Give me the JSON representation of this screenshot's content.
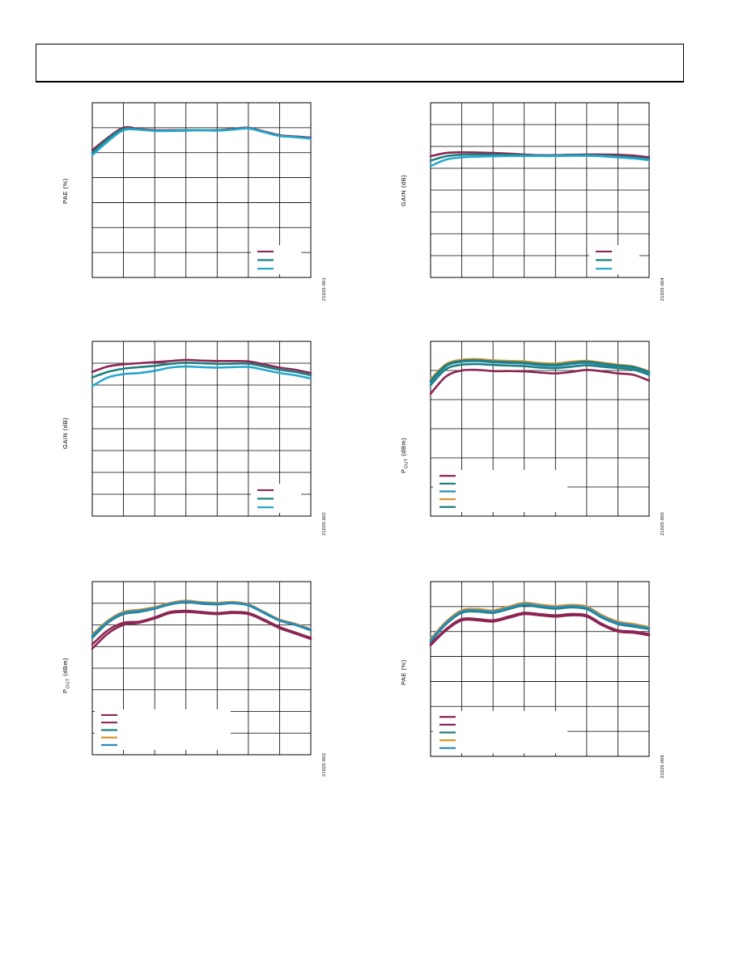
{
  "header": {
    "title": ""
  },
  "colors": {
    "maroon": "#8c2553",
    "teal": "#1f7f7f",
    "cyan": "#27a6cc",
    "orange": "#d9952b",
    "blue": "#2a8bbf"
  },
  "chart_data": [
    {
      "id": "fig1",
      "type": "line",
      "title": "",
      "ylabel": "PAE (%)",
      "figure_id": "21025-001",
      "xlim": [
        0,
        7
      ],
      "ylim": [
        0,
        7
      ],
      "grid": true,
      "legend_position": "bottom-right",
      "legend": [
        "",
        "",
        ""
      ],
      "series": [
        {
          "name": "",
          "color": "maroon",
          "x": [
            0,
            0.5,
            1,
            1.5,
            2,
            2.5,
            3,
            3.5,
            4,
            4.5,
            5,
            5.5,
            6,
            6.5,
            7
          ],
          "y": [
            5.1,
            5.6,
            6.0,
            5.95,
            5.9,
            5.9,
            5.9,
            5.9,
            5.9,
            5.95,
            6.0,
            5.85,
            5.7,
            5.65,
            5.6
          ]
        },
        {
          "name": "",
          "color": "teal",
          "x": [
            0,
            0.5,
            1,
            1.5,
            2,
            2.5,
            3,
            3.5,
            4,
            4.5,
            5,
            5.5,
            6,
            6.5,
            7
          ],
          "y": [
            5.0,
            5.55,
            5.95,
            5.93,
            5.88,
            5.88,
            5.9,
            5.9,
            5.9,
            5.93,
            5.98,
            5.83,
            5.68,
            5.63,
            5.58
          ]
        },
        {
          "name": "",
          "color": "cyan",
          "x": [
            0,
            0.5,
            1,
            1.5,
            2,
            2.5,
            3,
            3.5,
            4,
            4.5,
            5,
            5.5,
            6,
            6.5,
            7
          ],
          "y": [
            4.9,
            5.45,
            5.9,
            5.92,
            5.87,
            5.87,
            5.88,
            5.9,
            5.88,
            5.92,
            5.97,
            5.82,
            5.67,
            5.62,
            5.56
          ]
        }
      ]
    },
    {
      "id": "fig2",
      "type": "line",
      "title": "",
      "ylabel": "GAIN (dB)",
      "figure_id": "21025-002",
      "xlim": [
        0,
        7
      ],
      "ylim": [
        0,
        8
      ],
      "grid": true,
      "legend_position": "bottom-right",
      "legend": [
        "",
        "",
        ""
      ],
      "series": [
        {
          "name": "",
          "color": "maroon",
          "x": [
            0,
            0.5,
            1,
            1.5,
            2,
            2.5,
            3,
            3.5,
            4,
            4.5,
            5,
            5.5,
            6,
            6.5,
            7
          ],
          "y": [
            6.6,
            6.85,
            6.95,
            7.0,
            7.05,
            7.1,
            7.15,
            7.12,
            7.1,
            7.1,
            7.08,
            6.95,
            6.8,
            6.7,
            6.55
          ]
        },
        {
          "name": "",
          "color": "teal",
          "x": [
            0,
            0.5,
            1,
            1.5,
            2,
            2.5,
            3,
            3.5,
            4,
            4.5,
            5,
            5.5,
            6,
            6.5,
            7
          ],
          "y": [
            6.35,
            6.6,
            6.75,
            6.82,
            6.88,
            6.97,
            7.02,
            7.0,
            6.97,
            6.98,
            6.98,
            6.85,
            6.7,
            6.6,
            6.45
          ]
        },
        {
          "name": "",
          "color": "cyan",
          "x": [
            0,
            0.5,
            1,
            1.5,
            2,
            2.5,
            3,
            3.5,
            4,
            4.5,
            5,
            5.5,
            6,
            6.5,
            7
          ],
          "y": [
            5.95,
            6.35,
            6.5,
            6.55,
            6.65,
            6.8,
            6.85,
            6.82,
            6.8,
            6.82,
            6.83,
            6.7,
            6.55,
            6.45,
            6.3
          ]
        }
      ]
    },
    {
      "id": "fig3",
      "type": "line",
      "title": "",
      "ylabel": "POUT (dBm)",
      "figure_id": "21025-003",
      "xlim": [
        0,
        7
      ],
      "ylim": [
        0,
        8
      ],
      "grid": true,
      "legend_position": "bottom-left",
      "legend": [
        "",
        "",
        "",
        "",
        ""
      ],
      "series": [
        {
          "name": "",
          "color": "maroon",
          "x": [
            0,
            0.5,
            1,
            1.5,
            2,
            2.5,
            3,
            3.5,
            4,
            4.5,
            5,
            5.5,
            6,
            6.5,
            7
          ],
          "y": [
            4.9,
            5.6,
            6.0,
            6.1,
            6.3,
            6.55,
            6.6,
            6.55,
            6.5,
            6.55,
            6.5,
            6.2,
            5.85,
            5.6,
            5.35
          ]
        },
        {
          "name": "",
          "color": "maroon",
          "x": [
            0,
            0.5,
            1,
            1.5,
            2,
            2.5,
            3,
            3.5,
            4,
            4.5,
            5,
            5.5,
            6,
            6.5,
            7
          ],
          "y": [
            5.1,
            5.75,
            6.1,
            6.15,
            6.35,
            6.6,
            6.65,
            6.6,
            6.55,
            6.6,
            6.55,
            6.25,
            5.9,
            5.65,
            5.4
          ]
        },
        {
          "name": "",
          "color": "teal",
          "x": [
            0,
            0.5,
            1,
            1.5,
            2,
            2.5,
            3,
            3.5,
            4,
            4.5,
            5,
            5.5,
            6,
            6.5,
            7
          ],
          "y": [
            5.4,
            6.1,
            6.5,
            6.6,
            6.75,
            6.95,
            7.05,
            6.98,
            6.95,
            7.0,
            6.9,
            6.55,
            6.2,
            6.0,
            5.75
          ]
        },
        {
          "name": "",
          "color": "orange",
          "x": [
            0,
            0.5,
            1,
            1.5,
            2,
            2.5,
            3,
            3.5,
            4,
            4.5,
            5,
            5.5,
            6,
            6.5,
            7
          ],
          "y": [
            5.55,
            6.2,
            6.6,
            6.7,
            6.82,
            7.02,
            7.12,
            7.05,
            7.02,
            7.06,
            6.95,
            6.6,
            6.25,
            6.05,
            5.8
          ]
        },
        {
          "name": "",
          "color": "blue",
          "x": [
            0,
            0.5,
            1,
            1.5,
            2,
            2.5,
            3,
            3.5,
            4,
            4.5,
            5,
            5.5,
            6,
            6.5,
            7
          ],
          "y": [
            5.5,
            6.15,
            6.55,
            6.65,
            6.78,
            6.98,
            7.08,
            7.02,
            6.98,
            7.02,
            6.92,
            6.58,
            6.22,
            6.02,
            5.78
          ]
        }
      ]
    },
    {
      "id": "fig4",
      "type": "line",
      "title": "",
      "ylabel": "GAIN (dB)",
      "figure_id": "21025-004",
      "xlim": [
        0,
        7
      ],
      "ylim": [
        0,
        8
      ],
      "grid": true,
      "legend_position": "bottom-right",
      "legend": [
        "",
        "",
        ""
      ],
      "series": [
        {
          "name": "",
          "color": "maroon",
          "x": [
            0,
            0.5,
            1,
            1.5,
            2,
            2.5,
            3,
            3.5,
            4,
            4.5,
            5,
            5.5,
            6,
            6.5,
            7
          ],
          "y": [
            5.55,
            5.7,
            5.73,
            5.72,
            5.7,
            5.67,
            5.63,
            5.6,
            5.6,
            5.62,
            5.63,
            5.63,
            5.62,
            5.58,
            5.5
          ]
        },
        {
          "name": "",
          "color": "teal",
          "x": [
            0,
            0.5,
            1,
            1.5,
            2,
            2.5,
            3,
            3.5,
            4,
            4.5,
            5,
            5.5,
            6,
            6.5,
            7
          ],
          "y": [
            5.35,
            5.55,
            5.62,
            5.63,
            5.63,
            5.62,
            5.6,
            5.58,
            5.58,
            5.6,
            5.6,
            5.58,
            5.55,
            5.5,
            5.42
          ]
        },
        {
          "name": "",
          "color": "cyan",
          "x": [
            0,
            0.5,
            1,
            1.5,
            2,
            2.5,
            3,
            3.5,
            4,
            4.5,
            5,
            5.5,
            6,
            6.5,
            7
          ],
          "y": [
            5.1,
            5.4,
            5.5,
            5.53,
            5.55,
            5.56,
            5.56,
            5.56,
            5.56,
            5.57,
            5.57,
            5.55,
            5.5,
            5.45,
            5.37
          ]
        }
      ]
    },
    {
      "id": "fig5",
      "type": "line",
      "title": "",
      "ylabel": "POUT (dBm)",
      "figure_id": "21025-005",
      "xlim": [
        0,
        7
      ],
      "ylim": [
        0,
        6
      ],
      "grid": true,
      "legend_position": "bottom-left",
      "legend": [
        "",
        "",
        "",
        "",
        ""
      ],
      "series": [
        {
          "name": "",
          "color": "maroon",
          "x": [
            0,
            0.5,
            1,
            1.5,
            2,
            2.5,
            3,
            3.5,
            4,
            4.5,
            5,
            5.5,
            6,
            6.5,
            7
          ],
          "y": [
            4.2,
            4.8,
            5.0,
            5.02,
            4.98,
            4.98,
            4.97,
            4.93,
            4.9,
            4.95,
            5.02,
            4.97,
            4.9,
            4.85,
            4.65
          ]
        },
        {
          "name": "",
          "color": "teal",
          "x": [
            0,
            0.5,
            1,
            1.5,
            2,
            2.5,
            3,
            3.5,
            4,
            4.5,
            5,
            5.5,
            6,
            6.5,
            7
          ],
          "y": [
            4.5,
            5.05,
            5.2,
            5.22,
            5.19,
            5.17,
            5.15,
            5.1,
            5.08,
            5.13,
            5.18,
            5.13,
            5.08,
            5.03,
            4.85
          ]
        },
        {
          "name": "",
          "color": "blue",
          "x": [
            0,
            0.5,
            1,
            1.5,
            2,
            2.5,
            3,
            3.5,
            4,
            4.5,
            5,
            5.5,
            6,
            6.5,
            7
          ],
          "y": [
            4.6,
            5.15,
            5.3,
            5.32,
            5.28,
            5.26,
            5.24,
            5.18,
            5.16,
            5.22,
            5.26,
            5.2,
            5.14,
            5.09,
            4.92
          ]
        },
        {
          "name": "",
          "color": "orange",
          "x": [
            0,
            0.5,
            1,
            1.5,
            2,
            2.5,
            3,
            3.5,
            4,
            4.5,
            5,
            5.5,
            6,
            6.5,
            7
          ],
          "y": [
            4.7,
            5.22,
            5.37,
            5.39,
            5.35,
            5.33,
            5.31,
            5.26,
            5.24,
            5.3,
            5.33,
            5.27,
            5.2,
            5.14,
            4.97
          ]
        },
        {
          "name": "",
          "color": "teal",
          "x": [
            0,
            0.5,
            1,
            1.5,
            2,
            2.5,
            3,
            3.5,
            4,
            4.5,
            5,
            5.5,
            6,
            6.5,
            7
          ],
          "y": [
            4.65,
            5.18,
            5.33,
            5.35,
            5.31,
            5.29,
            5.27,
            5.22,
            5.2,
            5.26,
            5.3,
            5.24,
            5.17,
            5.12,
            4.95
          ]
        }
      ]
    },
    {
      "id": "fig6",
      "type": "line",
      "title": "",
      "ylabel": "PAE (%)",
      "figure_id": "21025-006",
      "xlim": [
        0,
        7
      ],
      "ylim": [
        0,
        7
      ],
      "grid": true,
      "legend_position": "bottom-left",
      "legend": [
        "",
        "",
        "",
        "",
        ""
      ],
      "series": [
        {
          "name": "",
          "color": "maroon",
          "x": [
            0,
            0.5,
            1,
            1.5,
            2,
            2.5,
            3,
            3.5,
            4,
            4.5,
            5,
            5.5,
            6,
            6.5,
            7
          ],
          "y": [
            4.45,
            5.05,
            5.45,
            5.45,
            5.4,
            5.55,
            5.7,
            5.65,
            5.6,
            5.65,
            5.6,
            5.25,
            5.0,
            4.95,
            4.85
          ]
        },
        {
          "name": "",
          "color": "maroon",
          "x": [
            0,
            0.5,
            1,
            1.5,
            2,
            2.5,
            3,
            3.5,
            4,
            4.5,
            5,
            5.5,
            6,
            6.5,
            7
          ],
          "y": [
            4.5,
            5.1,
            5.5,
            5.5,
            5.45,
            5.6,
            5.75,
            5.7,
            5.65,
            5.7,
            5.65,
            5.3,
            5.05,
            5.0,
            4.9
          ]
        },
        {
          "name": "",
          "color": "teal",
          "x": [
            0,
            0.5,
            1,
            1.5,
            2,
            2.5,
            3,
            3.5,
            4,
            4.5,
            5,
            5.5,
            6,
            6.5,
            7
          ],
          "y": [
            4.6,
            5.3,
            5.75,
            5.8,
            5.75,
            5.9,
            6.05,
            5.98,
            5.92,
            5.97,
            5.9,
            5.55,
            5.3,
            5.2,
            5.1
          ]
        },
        {
          "name": "",
          "color": "orange",
          "x": [
            0,
            0.5,
            1,
            1.5,
            2,
            2.5,
            3,
            3.5,
            4,
            4.5,
            5,
            5.5,
            6,
            6.5,
            7
          ],
          "y": [
            4.7,
            5.4,
            5.85,
            5.9,
            5.85,
            6.0,
            6.15,
            6.08,
            6.02,
            6.07,
            6.0,
            5.65,
            5.4,
            5.3,
            5.18
          ]
        },
        {
          "name": "",
          "color": "blue",
          "x": [
            0,
            0.5,
            1,
            1.5,
            2,
            2.5,
            3,
            3.5,
            4,
            4.5,
            5,
            5.5,
            6,
            6.5,
            7
          ],
          "y": [
            4.65,
            5.35,
            5.8,
            5.85,
            5.8,
            5.95,
            6.1,
            6.03,
            5.97,
            6.02,
            5.95,
            5.6,
            5.35,
            5.25,
            5.14
          ]
        }
      ]
    }
  ]
}
